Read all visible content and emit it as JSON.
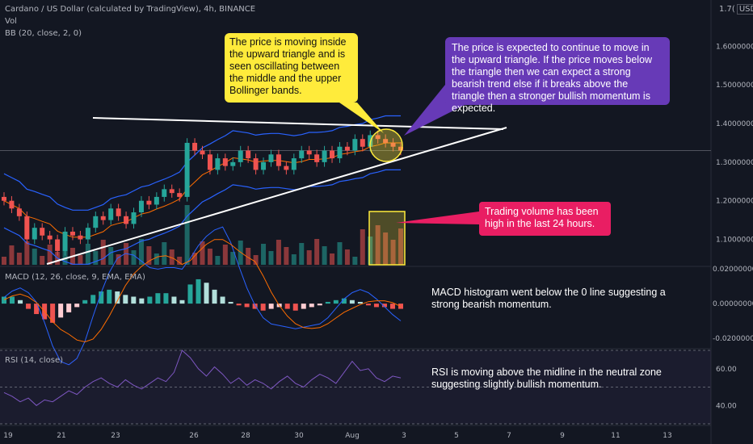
{
  "header": {
    "symbol_line": "Cardano / US Dollar (calculated by TradingView), 4h, BINANCE",
    "vol_label": "Vol",
    "bb_label": "BB (20, close, 2, 0)",
    "currency_prefix": "1.7(",
    "currency": "USD"
  },
  "indicators": {
    "macd_label": "MACD (12, 26, close, 9, EMA, EMA)",
    "rsi_label": "RSI (14, close)"
  },
  "callouts": {
    "yellow": "The price is moving inside the upward triangle and is seen oscillating between the middle and the upper Bollinger bands.",
    "purple": "The price is expected to continue to move in the upward triangle. If the price moves below the triangle then we can expect a strong bearish trend else if it breaks above the triangle then a stronger bullish momentum is expected.",
    "pink": "Trading volume has been high in the last 24 hours.",
    "macd_note": "MACD histogram went below the 0 line suggesting a strong bearish momentum.",
    "rsi_note": "RSI is moving above the midline in the neutral zone suggesting slightly bullish momentum."
  },
  "colors": {
    "background": "#131722",
    "up": "#26a69a",
    "down": "#ef5350",
    "bb_upper_lower": "#2962ff",
    "bb_basis": "#ff6d00",
    "rsi_line": "#7e57c2",
    "yellow_callout": "#ffeb3b",
    "purple_callout": "#673ab7",
    "pink_callout": "#e91e63"
  },
  "chart_data": [
    {
      "type": "candlestick",
      "title": "Cardano / US Dollar (calculated by TradingView), 4h, BINANCE",
      "x_ticks": [
        "19",
        "21",
        "23",
        "26",
        "28",
        "30",
        "Aug",
        "3",
        "5",
        "7",
        "9",
        "11",
        "13"
      ],
      "y_ticks": [
        "1.60000000",
        "1.50000000",
        "1.40000000",
        "1.30000000",
        "1.20000000",
        "1.10000000"
      ],
      "ylim": [
        1.03,
        1.72
      ],
      "current_price": 1.33,
      "close_path": [
        1.2,
        1.18,
        1.16,
        1.1,
        1.13,
        1.11,
        1.1,
        1.07,
        1.12,
        1.11,
        1.1,
        1.13,
        1.16,
        1.15,
        1.18,
        1.16,
        1.14,
        1.17,
        1.2,
        1.19,
        1.21,
        1.23,
        1.22,
        1.21,
        1.35,
        1.33,
        1.32,
        1.28,
        1.31,
        1.29,
        1.3,
        1.33,
        1.31,
        1.28,
        1.3,
        1.32,
        1.29,
        1.28,
        1.31,
        1.33,
        1.32,
        1.3,
        1.33,
        1.31,
        1.34,
        1.33,
        1.36,
        1.34,
        1.37,
        1.36,
        1.35,
        1.34,
        1.33
      ]
    },
    {
      "type": "bar",
      "title": "Vol",
      "note": "volume histogram in lower band of main pane"
    },
    {
      "type": "bar",
      "title": "MACD (12, 26, close, 9, EMA, EMA)",
      "y_ticks": [
        "0.02000000",
        "0.00000000",
        "-0.02000000"
      ],
      "ylim": [
        -0.025,
        0.02
      ],
      "histogram": [
        0.004,
        0.004,
        0.002,
        -0.003,
        -0.006,
        -0.009,
        -0.011,
        -0.008,
        -0.005,
        -0.002,
        0.002,
        0.005,
        0.007,
        0.008,
        0.007,
        0.005,
        0.004,
        0.003,
        0.004,
        0.006,
        0.006,
        0.004,
        0.002,
        0.011,
        0.014,
        0.012,
        0.008,
        0.004,
        0.001,
        -0.001,
        -0.002,
        -0.003,
        -0.004,
        -0.003,
        -0.002,
        -0.003,
        -0.004,
        -0.003,
        -0.002,
        -0.001,
        0.001,
        0.002,
        0.003,
        0.002,
        0.001,
        -0.001,
        -0.002,
        -0.002,
        -0.003,
        -0.003
      ]
    },
    {
      "type": "line",
      "title": "RSI (14, close)",
      "y_ticks": [
        "60.00",
        "40.00"
      ],
      "ylim": [
        30,
        70
      ],
      "values": [
        47,
        45,
        42,
        44,
        40,
        43,
        42,
        45,
        48,
        46,
        50,
        53,
        55,
        52,
        50,
        54,
        51,
        49,
        52,
        55,
        53,
        58,
        70,
        66,
        60,
        56,
        61,
        57,
        52,
        55,
        51,
        54,
        52,
        49,
        53,
        56,
        52,
        50,
        54,
        57,
        55,
        52,
        58,
        64,
        59,
        60,
        55,
        53,
        56,
        55
      ]
    }
  ]
}
